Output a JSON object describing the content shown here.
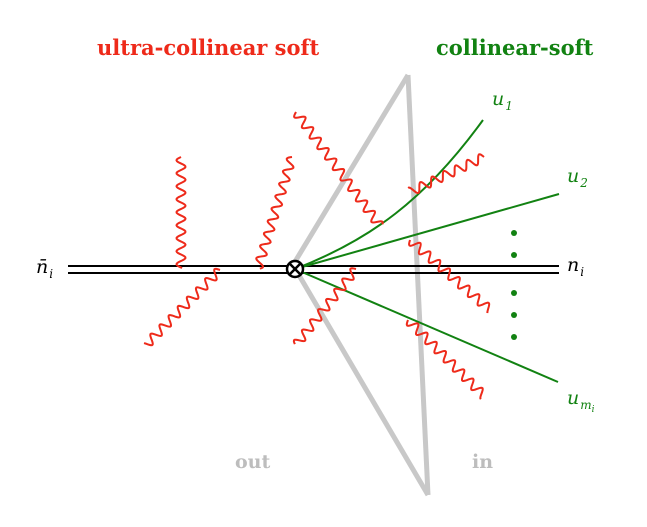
{
  "title_left": "ultra-collinear soft",
  "title_right": "collinear-soft",
  "region_out": "out",
  "region_in": "in",
  "label_nbar": {
    "base": "n̄",
    "sub": "i"
  },
  "label_n": {
    "base": "n",
    "sub": "i"
  },
  "label_u1": {
    "base": "u",
    "sub": "1"
  },
  "label_u2": {
    "base": "u",
    "sub": "2"
  },
  "label_um": {
    "base": "u",
    "sub": "m",
    "subsub": "i"
  },
  "colors": {
    "red": "#ee2a1a",
    "green": "#128212",
    "gray": "#c8c8c8",
    "black": "#000000"
  }
}
